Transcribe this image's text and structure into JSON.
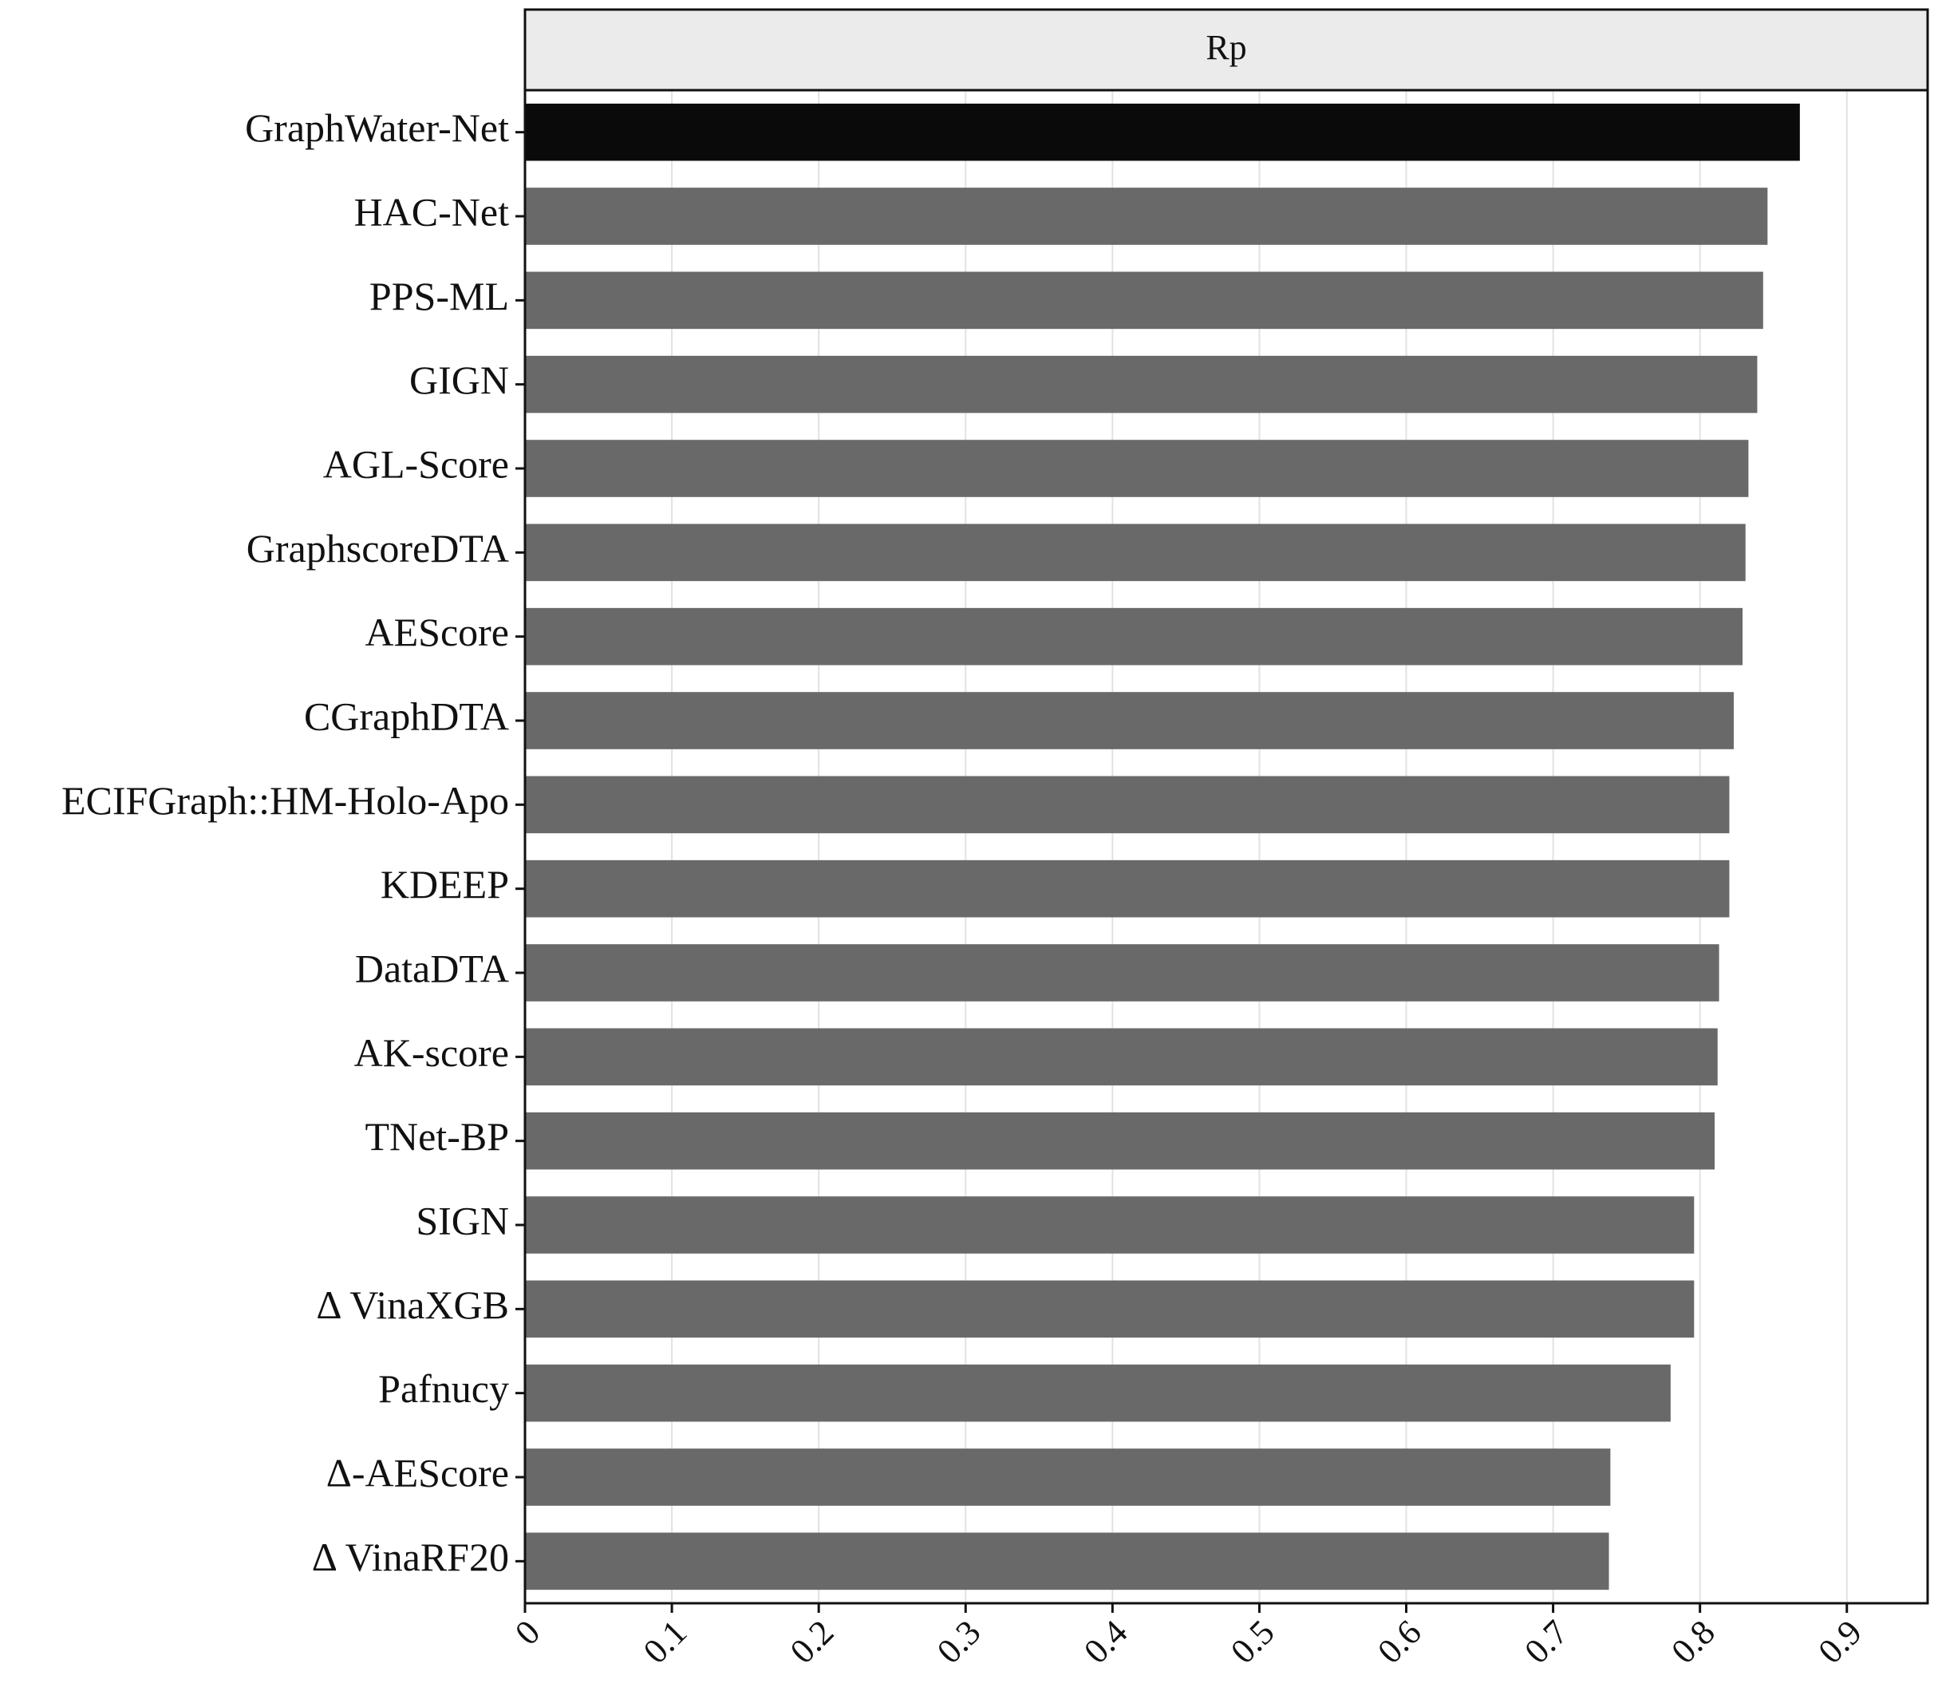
{
  "chart_data": {
    "type": "bar",
    "orientation": "horizontal",
    "strip_title": "Rp",
    "categories": [
      "GraphWater-Net",
      "HAC-Net",
      "PPS-ML",
      "GIGN",
      "AGL-Score",
      "GraphscoreDTA",
      "AEScore",
      "CGraphDTA",
      "ECIFGraph::HM-Holo-Apo",
      "KDEEP",
      "DataDTA",
      "AK-score",
      "TNet-BP",
      "SIGN",
      "Δ VinaXGB",
      "Pafnucy",
      "Δ-AEScore",
      "Δ VinaRF20"
    ],
    "values": [
      0.868,
      0.846,
      0.843,
      0.839,
      0.833,
      0.831,
      0.829,
      0.823,
      0.82,
      0.82,
      0.813,
      0.812,
      0.81,
      0.796,
      0.796,
      0.78,
      0.739,
      0.738
    ],
    "colors": [
      "#0a0a0a",
      "#696969",
      "#696969",
      "#696969",
      "#696969",
      "#696969",
      "#696969",
      "#696969",
      "#696969",
      "#696969",
      "#696969",
      "#696969",
      "#696969",
      "#696969",
      "#696969",
      "#696969",
      "#696969",
      "#696969"
    ],
    "xlim": [
      0,
      0.955
    ],
    "xticks": [
      0,
      0.1,
      0.2,
      0.3,
      0.4,
      0.5,
      0.6,
      0.7,
      0.8,
      0.9
    ],
    "grid": true
  }
}
